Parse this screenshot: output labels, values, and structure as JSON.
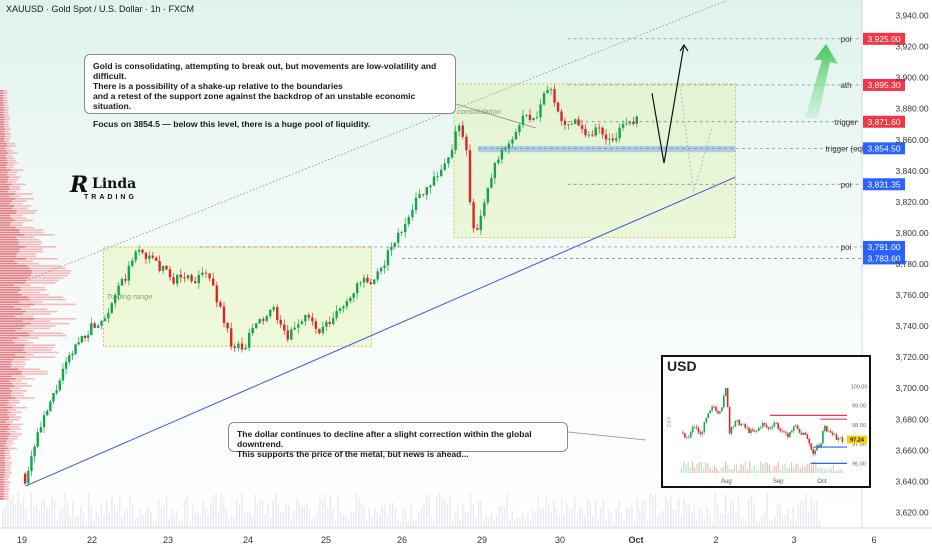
{
  "header": {
    "title": "XAUUSD · Gold Spot / U.S. Dollar · 1h · FXCM"
  },
  "logo": {
    "mark": "R",
    "name": "Linda",
    "sub": "TRADING"
  },
  "callouts": {
    "top": {
      "line1": "Gold is consolidating, attempting to break out, but movements are low-volatility and difficult.\nThere is a possibility of a shake-up relative to the boundaries\nand a retest of the support zone against the backdrop of an unstable economic situation.",
      "line2": "Focus on 3854.5 — below this level, there is a huge pool of liquidity."
    },
    "bottom": {
      "text": "The dollar continues to decline after a slight correction within the global downtrend.\nThis supports the price of the metal, but news is ahead..."
    }
  },
  "chart_data": {
    "type": "candlestick",
    "instrument": "XAUUSD · Gold Spot / U.S. Dollar · 1h · FXCM",
    "ylim": [
      3610,
      3950
    ],
    "y_ticks": [
      3620,
      3640,
      3660,
      3680,
      3700,
      3720,
      3740,
      3760,
      3780,
      3800,
      3820,
      3840,
      3860,
      3880,
      3900,
      3920,
      3940
    ],
    "x_ticks": [
      "19",
      "22",
      "23",
      "24",
      "25",
      "26",
      "29",
      "30",
      "Oct",
      "2",
      "3",
      "6"
    ],
    "x_tick_index": [
      0,
      1,
      2,
      3,
      4,
      5,
      6,
      7,
      8,
      9,
      10,
      11
    ],
    "price_path": [
      [
        0,
        3645
      ],
      [
        0.05,
        3641
      ],
      [
        0.1,
        3650
      ],
      [
        0.2,
        3668
      ],
      [
        0.3,
        3678
      ],
      [
        0.45,
        3695
      ],
      [
        0.6,
        3712
      ],
      [
        0.8,
        3730
      ],
      [
        1.0,
        3740
      ],
      [
        1.15,
        3745
      ],
      [
        1.3,
        3760
      ],
      [
        1.45,
        3772
      ],
      [
        1.6,
        3790
      ],
      [
        1.75,
        3784
      ],
      [
        1.9,
        3778
      ],
      [
        2.05,
        3770
      ],
      [
        2.2,
        3772
      ],
      [
        2.35,
        3770
      ],
      [
        2.5,
        3774
      ],
      [
        2.65,
        3752
      ],
      [
        2.8,
        3728
      ],
      [
        2.95,
        3724
      ],
      [
        3.05,
        3738
      ],
      [
        3.2,
        3745
      ],
      [
        3.35,
        3750
      ],
      [
        3.5,
        3730
      ],
      [
        3.6,
        3740
      ],
      [
        3.75,
        3748
      ],
      [
        3.9,
        3735
      ],
      [
        4.05,
        3742
      ],
      [
        4.2,
        3752
      ],
      [
        4.35,
        3762
      ],
      [
        4.5,
        3770
      ],
      [
        4.6,
        3764
      ],
      [
        4.7,
        3775
      ],
      [
        4.85,
        3790
      ],
      [
        5.0,
        3802
      ],
      [
        5.1,
        3815
      ],
      [
        5.25,
        3826
      ],
      [
        5.4,
        3836
      ],
      [
        5.55,
        3844
      ],
      [
        5.65,
        3860
      ],
      [
        5.72,
        3870
      ],
      [
        5.8,
        3858
      ],
      [
        5.85,
        3820
      ],
      [
        5.9,
        3798
      ],
      [
        6.0,
        3812
      ],
      [
        6.15,
        3842
      ],
      [
        6.3,
        3856
      ],
      [
        6.45,
        3866
      ],
      [
        6.55,
        3876
      ],
      [
        6.65,
        3870
      ],
      [
        6.75,
        3882
      ],
      [
        6.85,
        3896
      ],
      [
        6.95,
        3880
      ],
      [
        7.05,
        3868
      ],
      [
        7.2,
        3875
      ],
      [
        7.35,
        3862
      ],
      [
        7.5,
        3868
      ],
      [
        7.65,
        3860
      ],
      [
        7.8,
        3866
      ],
      [
        7.95,
        3872
      ],
      [
        8.05,
        3878
      ]
    ],
    "projection": [
      [
        8.2,
        3890
      ],
      [
        8.35,
        3845
      ],
      [
        8.6,
        3921
      ]
    ],
    "projection_alt": [
      [
        8.55,
        3895
      ],
      [
        8.72,
        3826
      ],
      [
        8.95,
        3868
      ]
    ],
    "zones": [
      {
        "label": "Trading range",
        "x0": 1.15,
        "x1": 4.6,
        "y0": 3727,
        "y1": 3791
      },
      {
        "label": "consolidation",
        "x0": 5.65,
        "x1": 9.25,
        "y0": 3797,
        "y1": 3896
      },
      {
        "label": "",
        "x0": 5.95,
        "x1": 9.25,
        "y0": 3852,
        "y1": 3856
      }
    ],
    "trendlines": [
      {
        "from": [
          0.05,
          3637
        ],
        "to": [
          9.25,
          3836
        ],
        "style": "solid",
        "color": "#3a55d8"
      },
      {
        "from": [
          0.1,
          3770
        ],
        "to": [
          9.25,
          3952
        ],
        "style": "dotted",
        "color": "#8c8c8c"
      }
    ],
    "levels": [
      {
        "name": "poi",
        "value": 3925.0,
        "label": "3,925.00",
        "color": "#f23645",
        "x0": 7.1
      },
      {
        "name": "ath",
        "value": 3895.3,
        "label": "3,895.30",
        "color": "#f23645",
        "x0": 7.1
      },
      {
        "name": "trigger",
        "value": 3871.6,
        "label": "3,871.60",
        "color": "#f23645",
        "x0": 7.1
      },
      {
        "name": "trigger (eql)",
        "value": 3854.5,
        "label": "3,854.50",
        "color": "#2962ff",
        "x0": 5.95
      },
      {
        "name": "poi",
        "value": 3831.35,
        "label": "3,831.35",
        "color": "#2962ff",
        "x0": 7.1
      },
      {
        "name": "poi",
        "value": 3791.0,
        "label": "3,791.00",
        "color": "#2962ff",
        "x0": 2.4
      },
      {
        "name": "",
        "value": 3783.6,
        "label": "3,783.60",
        "color": "#2962ff",
        "x0": 5.0
      }
    ],
    "inset": {
      "title": "USD",
      "ylim": [
        95.5,
        100.6
      ],
      "y_ticks": [
        96.0,
        97.0,
        98.0,
        99.0,
        100.0
      ],
      "x_ticks": [
        "Aug",
        "Sep",
        "Oct"
      ],
      "x_tick_index": [
        0.28,
        0.6,
        0.87
      ],
      "current": "97.24",
      "price_path": [
        [
          0.0,
          97.6
        ],
        [
          0.04,
          97.2
        ],
        [
          0.08,
          98.0
        ],
        [
          0.12,
          97.5
        ],
        [
          0.16,
          98.4
        ],
        [
          0.2,
          99.0
        ],
        [
          0.24,
          98.6
        ],
        [
          0.28,
          100.0
        ],
        [
          0.3,
          97.6
        ],
        [
          0.34,
          98.2
        ],
        [
          0.38,
          98.0
        ],
        [
          0.42,
          97.7
        ],
        [
          0.46,
          97.6
        ],
        [
          0.5,
          98.1
        ],
        [
          0.54,
          97.8
        ],
        [
          0.58,
          98.2
        ],
        [
          0.62,
          97.6
        ],
        [
          0.66,
          97.4
        ],
        [
          0.7,
          98.0
        ],
        [
          0.74,
          97.6
        ],
        [
          0.78,
          97.3
        ],
        [
          0.8,
          96.7
        ],
        [
          0.82,
          96.4
        ],
        [
          0.84,
          97.0
        ],
        [
          0.86,
          96.9
        ],
        [
          0.88,
          97.9
        ],
        [
          0.92,
          97.6
        ],
        [
          0.96,
          97.3
        ],
        [
          1.0,
          97.24
        ]
      ],
      "levels": [
        {
          "value": 98.5,
          "color": "#f23645",
          "x0": 0.55
        },
        {
          "value": 98.3,
          "color": "#f23645",
          "x0": 0.86
        },
        {
          "value": 96.85,
          "color": "#2962ff",
          "x0": 0.82
        },
        {
          "value": 96.0,
          "color": "#2962ff",
          "x0": 0.8
        }
      ],
      "y_label": "DXY"
    }
  }
}
